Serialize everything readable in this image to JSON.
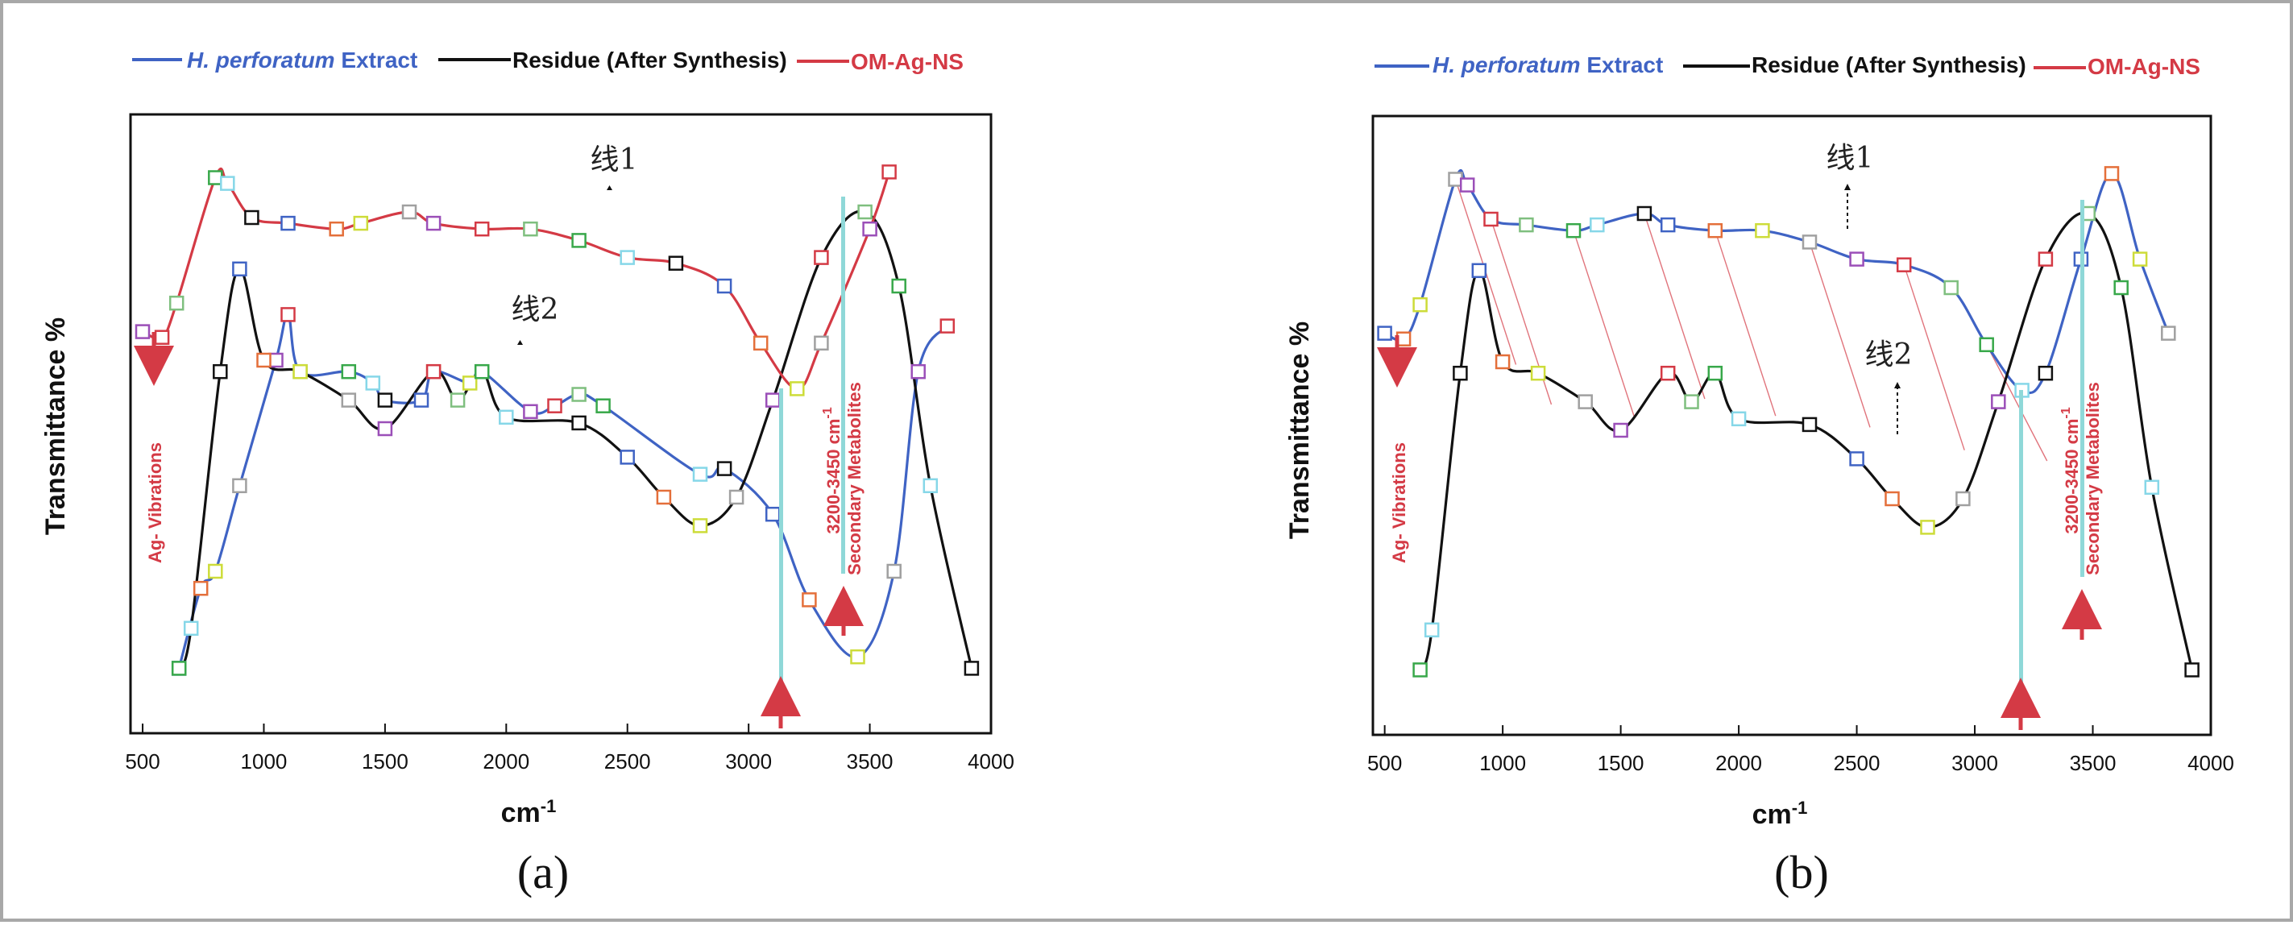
{
  "legend": {
    "species": "H. perforatum",
    "extract": " Extract",
    "residue": "Residue (After Synthesis)",
    "nanoparticles": "OM-Ag-NS"
  },
  "colors": {
    "extract": "#3f63c4",
    "residue": "#111111",
    "nanoparticles": "#d43a45",
    "highlight": "#8fd8d8",
    "frame": "#a8a8a8"
  },
  "axes": {
    "xlabel": "cm",
    "xlabel_sup": "-1",
    "ylabel": "Transmittance %"
  },
  "annotations": {
    "ag_vibrations": "Ag- Vibrations",
    "range": "3200-3450 cm",
    "range_sup": "-1",
    "metabolites": "Secondary Metabolites"
  },
  "chart_data": [
    {
      "type": "line",
      "panel_label": "(a)",
      "line_labels": [
        "线1",
        "线2"
      ],
      "xlim": [
        450,
        4000
      ],
      "x_ticks": [
        500,
        1000,
        1500,
        2000,
        2500,
        3000,
        3500,
        4000
      ],
      "y_ticks": [],
      "grid": false,
      "legend_position": "top",
      "series": [
        {
          "name": "H. perforatum Extract",
          "color": "#3f63c4",
          "x": [
            650,
            740,
            800,
            900,
            1050,
            1100,
            1150,
            1350,
            1450,
            1500,
            1650,
            1700,
            1850,
            1900,
            2100,
            2200,
            2300,
            2400,
            2800,
            2900,
            3100,
            3250,
            3450,
            3600,
            3700,
            3820
          ],
          "y": [
            8,
            22,
            25,
            40,
            62,
            70,
            60,
            60,
            58,
            55,
            55,
            60,
            58,
            60,
            53,
            54,
            56,
            54,
            42,
            43,
            35,
            20,
            10,
            25,
            60,
            68
          ]
        },
        {
          "name": "Residue (After Synthesis)",
          "color": "#111111",
          "x": [
            650,
            700,
            820,
            900,
            1000,
            1150,
            1350,
            1500,
            1700,
            1800,
            1900,
            2000,
            2300,
            2500,
            2650,
            2800,
            2950,
            3100,
            3300,
            3480,
            3620,
            3750,
            3920
          ],
          "y": [
            8,
            15,
            60,
            78,
            62,
            60,
            55,
            50,
            60,
            55,
            60,
            52,
            51,
            45,
            38,
            33,
            38,
            55,
            80,
            88,
            75,
            40,
            8
          ]
        },
        {
          "name": "OM-Ag-NS",
          "color": "#d43a45",
          "x": [
            500,
            580,
            640,
            800,
            850,
            950,
            1100,
            1300,
            1400,
            1600,
            1700,
            1900,
            2100,
            2300,
            2500,
            2700,
            2900,
            3050,
            3200,
            3300,
            3500,
            3580
          ],
          "y": [
            67,
            66,
            72,
            94,
            93,
            87,
            86,
            85,
            86,
            88,
            86,
            85,
            85,
            83,
            80,
            79,
            75,
            65,
            57,
            65,
            85,
            95
          ]
        }
      ]
    },
    {
      "type": "line",
      "panel_label": "(b)",
      "line_labels": [
        "线1",
        "线2"
      ],
      "xlim": [
        450,
        4000
      ],
      "x_ticks": [
        500,
        1000,
        1500,
        2000,
        2500,
        3000,
        3500,
        4000
      ],
      "y_ticks": [],
      "grid": false,
      "legend_position": "top",
      "series": [
        {
          "name": "H. perforatum Extract",
          "color": "#3f63c4",
          "x": [
            500,
            580,
            650,
            800,
            850,
            950,
            1100,
            1300,
            1400,
            1600,
            1700,
            1900,
            2100,
            2300,
            2500,
            2700,
            2900,
            3050,
            3200,
            3300,
            3450,
            3580,
            3700,
            3820
          ],
          "y": [
            67,
            66,
            72,
            94,
            93,
            87,
            86,
            85,
            86,
            88,
            86,
            85,
            85,
            83,
            80,
            79,
            75,
            65,
            57,
            60,
            80,
            95,
            80,
            67
          ]
        },
        {
          "name": "Residue (After Synthesis)",
          "color": "#111111",
          "x": [
            650,
            700,
            820,
            900,
            1000,
            1150,
            1350,
            1500,
            1700,
            1800,
            1900,
            2000,
            2300,
            2500,
            2650,
            2800,
            2950,
            3100,
            3300,
            3480,
            3620,
            3750,
            3920
          ],
          "y": [
            8,
            15,
            60,
            78,
            62,
            60,
            55,
            50,
            60,
            55,
            60,
            52,
            51,
            45,
            38,
            33,
            38,
            55,
            80,
            88,
            75,
            40,
            8
          ]
        },
        {
          "name": "OM-Ag-NS",
          "color": "#d43a45",
          "x": [],
          "y": []
        }
      ]
    }
  ]
}
